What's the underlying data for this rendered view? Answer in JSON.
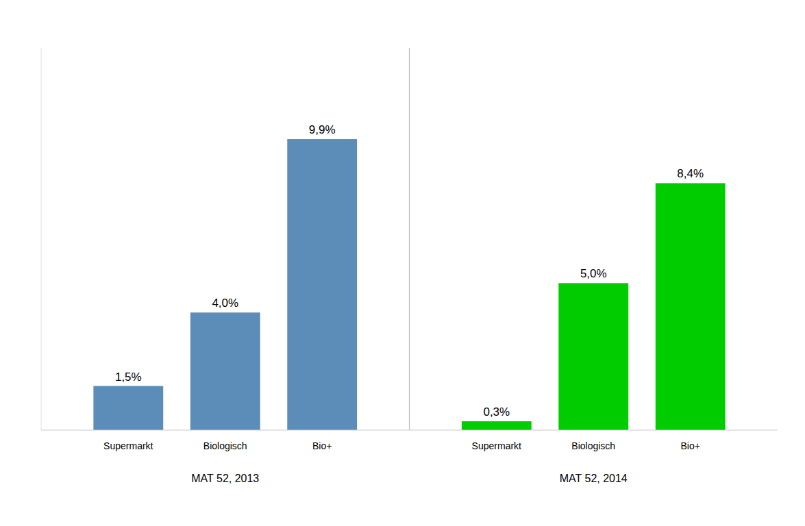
{
  "chart_data": {
    "type": "bar",
    "categories": [
      "Supermarkt",
      "Biologisch",
      "Bio+"
    ],
    "series": [
      {
        "name": "MAT 52, 2013",
        "color": "#5B8DB8",
        "values": [
          1.5,
          4.0,
          9.9
        ],
        "value_labels": [
          "1,5%",
          "4,0%",
          "9,9%"
        ]
      },
      {
        "name": "MAT 52, 2014",
        "color": "#00CC00",
        "values": [
          0.3,
          5.0,
          8.4
        ],
        "value_labels": [
          "0,3%",
          "5,0%",
          "8,4%"
        ]
      }
    ],
    "ylim": [
      0,
      13.0
    ],
    "data_labels": true,
    "tick_labels": "x",
    "grid": false
  }
}
